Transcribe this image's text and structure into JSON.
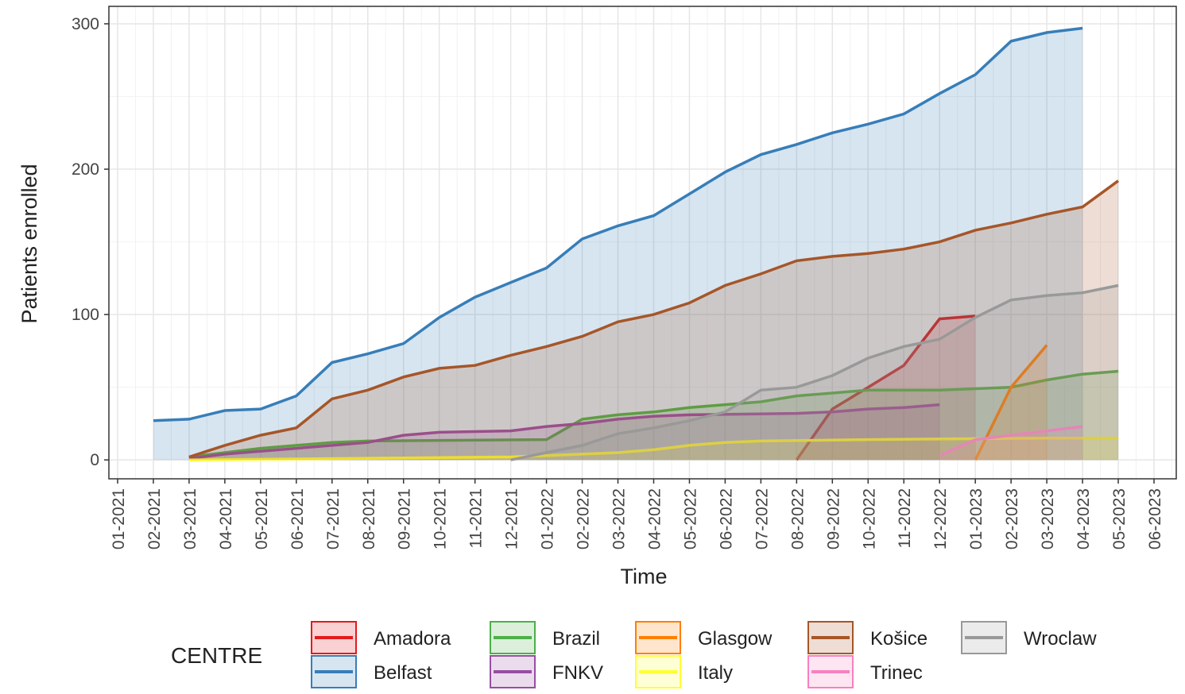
{
  "chart_data": {
    "type": "line",
    "xlabel": "Time",
    "ylabel": "Patients enrolled",
    "legend_title": "CENTRE",
    "xlim": [
      "01-2021",
      "06-2023"
    ],
    "ylim": [
      -13,
      312
    ],
    "yticks": [
      0,
      100,
      200,
      300
    ],
    "grid": true,
    "area": true,
    "legend": "bottom",
    "xticks": [
      "01-2021",
      "02-2021",
      "03-2021",
      "04-2021",
      "05-2021",
      "06-2021",
      "07-2021",
      "08-2021",
      "09-2021",
      "10-2021",
      "11-2021",
      "12-2021",
      "01-2022",
      "02-2022",
      "03-2022",
      "04-2022",
      "05-2022",
      "06-2022",
      "07-2022",
      "08-2022",
      "09-2022",
      "10-2022",
      "11-2022",
      "12-2022",
      "01-2023",
      "02-2023",
      "03-2023",
      "04-2023",
      "05-2023",
      "06-2023"
    ],
    "series": [
      {
        "name": "Amadora",
        "color": "#e41a1c",
        "x": [
          "08-2022",
          "09-2022",
          "10-2022",
          "11-2022",
          "12-2022",
          "01-2023"
        ],
        "values": [
          0,
          35,
          50,
          65,
          97,
          99
        ]
      },
      {
        "name": "Belfast",
        "color": "#377eb8",
        "x": [
          "02-2021",
          "03-2021",
          "04-2021",
          "05-2021",
          "06-2021",
          "07-2021",
          "08-2021",
          "09-2021",
          "10-2021",
          "11-2021",
          "12-2021",
          "01-2022",
          "02-2022",
          "03-2022",
          "04-2022",
          "05-2022",
          "06-2022",
          "07-2022",
          "08-2022",
          "09-2022",
          "10-2022",
          "11-2022",
          "12-2022",
          "01-2023",
          "02-2023",
          "03-2023",
          "04-2023"
        ],
        "values": [
          27,
          28,
          34,
          35,
          44,
          67,
          73,
          80,
          98,
          112,
          122,
          132,
          152,
          161,
          168,
          183,
          198,
          210,
          217,
          225,
          231,
          238,
          252,
          265,
          288,
          294,
          297
        ]
      },
      {
        "name": "Brazil",
        "color": "#4daf4a",
        "x": [
          "03-2021",
          "04-2021",
          "05-2021",
          "06-2021",
          "07-2021",
          "08-2021",
          "01-2022",
          "02-2022",
          "03-2022",
          "04-2022",
          "05-2022",
          "06-2022",
          "07-2022",
          "08-2022",
          "09-2022",
          "10-2022",
          "12-2022",
          "01-2023",
          "02-2023",
          "03-2023",
          "04-2023",
          "05-2023"
        ],
        "values": [
          2,
          5,
          8,
          10,
          12,
          13,
          14,
          28,
          31,
          33,
          36,
          38,
          40,
          44,
          46,
          48,
          48,
          49,
          50,
          55,
          59,
          61
        ]
      },
      {
        "name": "FNKV",
        "color": "#984ea3",
        "x": [
          "03-2021",
          "04-2021",
          "05-2021",
          "06-2021",
          "07-2021",
          "08-2021",
          "09-2021",
          "10-2021",
          "12-2021",
          "01-2022",
          "02-2022",
          "03-2022",
          "04-2022",
          "05-2022",
          "08-2022",
          "09-2022",
          "10-2022",
          "11-2022",
          "12-2022"
        ],
        "values": [
          1,
          4,
          6,
          8,
          10,
          12,
          17,
          19,
          20,
          23,
          25,
          28,
          30,
          31,
          32,
          33,
          35,
          36,
          38
        ]
      },
      {
        "name": "Glasgow",
        "color": "#ff7f00",
        "x": [
          "01-2023",
          "02-2023",
          "03-2023"
        ],
        "values": [
          0,
          50,
          79
        ]
      },
      {
        "name": "Italy",
        "color": "#ffff33",
        "x": [
          "03-2021",
          "12-2021",
          "01-2022",
          "03-2022",
          "04-2022",
          "05-2022",
          "06-2022",
          "07-2022",
          "10-2022",
          "03-2023",
          "05-2023"
        ],
        "values": [
          0,
          2,
          3,
          5,
          7,
          10,
          12,
          13,
          14,
          15,
          15
        ]
      },
      {
        "name": "Košice",
        "color": "#a65628",
        "x": [
          "03-2021",
          "04-2021",
          "05-2021",
          "06-2021",
          "07-2021",
          "08-2021",
          "09-2021",
          "10-2021",
          "11-2021",
          "12-2021",
          "01-2022",
          "02-2022",
          "03-2022",
          "04-2022",
          "05-2022",
          "06-2022",
          "07-2022",
          "08-2022",
          "09-2022",
          "10-2022",
          "11-2022",
          "12-2022",
          "01-2023",
          "02-2023",
          "03-2023",
          "04-2023",
          "05-2023"
        ],
        "values": [
          2,
          10,
          17,
          22,
          42,
          48,
          57,
          63,
          65,
          72,
          78,
          85,
          95,
          100,
          108,
          120,
          128,
          137,
          140,
          142,
          145,
          150,
          158,
          163,
          169,
          174,
          192
        ]
      },
      {
        "name": "Trinec",
        "color": "#f781bf",
        "x": [
          "12-2022",
          "01-2023",
          "02-2023",
          "03-2023",
          "04-2023"
        ],
        "values": [
          3,
          14,
          17,
          20,
          23
        ]
      },
      {
        "name": "Wroclaw",
        "color": "#999999",
        "x": [
          "12-2021",
          "01-2022",
          "02-2022",
          "03-2022",
          "04-2022",
          "05-2022",
          "06-2022",
          "07-2022",
          "08-2022",
          "09-2022",
          "10-2022",
          "11-2022",
          "12-2022",
          "01-2023",
          "02-2023",
          "03-2023",
          "04-2023",
          "05-2023"
        ],
        "values": [
          0,
          5,
          10,
          18,
          22,
          27,
          33,
          48,
          50,
          58,
          70,
          78,
          83,
          98,
          110,
          113,
          115,
          120
        ]
      }
    ]
  }
}
